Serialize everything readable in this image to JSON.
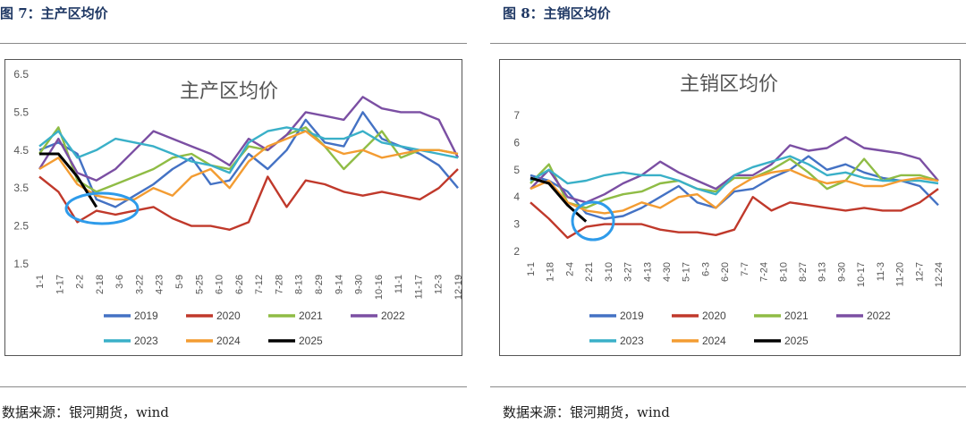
{
  "left": {
    "figure_title": "图 7：主产区均价",
    "source": "数据来源：银河期货，wind"
  },
  "right": {
    "figure_title": "图 8：主销区均价",
    "source": "数据来源：银河期货，wind"
  },
  "colors": {
    "2019": "#4472c4",
    "2020": "#c0392b",
    "2021": "#8fbc45",
    "2022": "#7b4fa3",
    "2023": "#3ab0c8",
    "2024": "#f39c32",
    "2025": "#000000",
    "highlight": "#2e9bea"
  },
  "chart_data": [
    {
      "type": "line",
      "title": "主产区均价",
      "x_ticks": [
        "1-1",
        "1-17",
        "2-2",
        "2-18",
        "3-6",
        "3-22",
        "4-23",
        "5-9",
        "5-25",
        "6-10",
        "6-26",
        "7-12",
        "7-28",
        "8-13",
        "8-29",
        "9-14",
        "9-30",
        "10-16",
        "11-1",
        "11-17",
        "12-3",
        "12-19"
      ],
      "y_ticks": [
        "6.5",
        "5.5",
        "4.5",
        "3.5",
        "2.5",
        "1.5"
      ],
      "ylim": [
        1.5,
        6.5
      ],
      "series": [
        {
          "name": "2019",
          "values": [
            4.5,
            4.7,
            4.4,
            3.2,
            3.0,
            3.3,
            3.6,
            4.0,
            4.3,
            3.6,
            3.7,
            4.4,
            4.0,
            4.5,
            5.3,
            4.7,
            4.6,
            5.5,
            4.8,
            4.6,
            4.4,
            4.1,
            3.5
          ]
        },
        {
          "name": "2020",
          "values": [
            3.8,
            3.4,
            2.6,
            2.9,
            2.8,
            2.9,
            3.0,
            2.7,
            2.5,
            2.5,
            2.4,
            2.6,
            3.8,
            3.0,
            3.7,
            3.6,
            3.4,
            3.3,
            3.4,
            3.3,
            3.2,
            3.5,
            4.0
          ]
        },
        {
          "name": "2021",
          "values": [
            4.4,
            5.1,
            3.7,
            3.4,
            3.6,
            3.8,
            4.0,
            4.3,
            4.4,
            4.1,
            4.0,
            4.6,
            4.5,
            4.9,
            5.1,
            4.6,
            4.0,
            4.5,
            5.0,
            4.3,
            4.5,
            4.5,
            4.4
          ]
        },
        {
          "name": "2022",
          "values": [
            4.0,
            4.8,
            3.9,
            3.7,
            4.0,
            4.5,
            5.0,
            4.8,
            4.6,
            4.4,
            4.1,
            4.8,
            4.5,
            4.9,
            5.5,
            5.4,
            5.3,
            5.9,
            5.6,
            5.5,
            5.5,
            5.3,
            4.3
          ]
        },
        {
          "name": "2023",
          "values": [
            4.6,
            5.0,
            4.3,
            4.5,
            4.8,
            4.7,
            4.6,
            4.4,
            4.2,
            4.1,
            3.9,
            4.7,
            5.0,
            5.1,
            5.0,
            4.8,
            4.8,
            5.0,
            4.7,
            4.6,
            4.5,
            4.4,
            4.3
          ]
        },
        {
          "name": "2024",
          "values": [
            4.0,
            4.3,
            3.6,
            3.3,
            3.2,
            3.2,
            3.5,
            3.3,
            3.8,
            4.0,
            3.5,
            4.2,
            4.6,
            4.8,
            5.0,
            4.6,
            4.4,
            4.5,
            4.3,
            4.4,
            4.5,
            4.5,
            4.4
          ]
        },
        {
          "name": "2025",
          "values": [
            4.4,
            4.4,
            3.8,
            3.0
          ]
        }
      ]
    },
    {
      "type": "line",
      "title": "主销区均价",
      "x_ticks": [
        "1-1",
        "1-18",
        "2-4",
        "2-21",
        "3-10",
        "3-27",
        "4-13",
        "4-30",
        "5-17",
        "6-3",
        "6-20",
        "7-7",
        "7-24",
        "8-10",
        "8-27",
        "9-13",
        "9-30",
        "10-17",
        "11-3",
        "11-20",
        "12-7",
        "12-24"
      ],
      "y_ticks": [
        "7",
        "6",
        "5",
        "4",
        "3",
        "2"
      ],
      "ylim": [
        2,
        7
      ],
      "series": [
        {
          "name": "2019",
          "values": [
            4.8,
            4.6,
            4.2,
            3.4,
            3.2,
            3.3,
            3.6,
            4.0,
            4.4,
            3.8,
            3.6,
            4.2,
            4.3,
            4.7,
            5.0,
            5.5,
            5.0,
            5.2,
            4.9,
            4.7,
            4.6,
            4.4,
            3.7
          ]
        },
        {
          "name": "2020",
          "values": [
            3.8,
            3.2,
            2.5,
            2.9,
            3.0,
            3.0,
            3.0,
            2.8,
            2.7,
            2.7,
            2.6,
            2.8,
            4.0,
            3.5,
            3.8,
            3.7,
            3.6,
            3.5,
            3.6,
            3.5,
            3.5,
            3.8,
            4.3
          ]
        },
        {
          "name": "2021",
          "values": [
            4.5,
            5.2,
            3.8,
            3.6,
            3.9,
            4.1,
            4.2,
            4.5,
            4.6,
            4.3,
            4.2,
            4.7,
            4.7,
            5.0,
            5.4,
            4.9,
            4.3,
            4.6,
            5.4,
            4.6,
            4.8,
            4.8,
            4.6
          ]
        },
        {
          "name": "2022",
          "values": [
            4.3,
            5.0,
            4.0,
            3.8,
            4.1,
            4.5,
            4.8,
            5.3,
            4.9,
            4.6,
            4.3,
            4.8,
            4.8,
            5.2,
            5.9,
            5.7,
            5.8,
            6.2,
            5.8,
            5.7,
            5.6,
            5.4,
            4.6
          ]
        },
        {
          "name": "2023",
          "values": [
            4.6,
            5.0,
            4.5,
            4.6,
            4.8,
            4.9,
            4.8,
            4.8,
            4.6,
            4.3,
            4.1,
            4.8,
            5.1,
            5.3,
            5.5,
            5.2,
            4.8,
            4.9,
            4.7,
            4.6,
            4.6,
            4.6,
            4.5
          ]
        },
        {
          "name": "2024",
          "values": [
            4.3,
            4.6,
            3.8,
            3.5,
            3.4,
            3.5,
            3.8,
            3.6,
            4.0,
            4.1,
            3.6,
            4.3,
            4.7,
            4.9,
            5.0,
            4.7,
            4.5,
            4.6,
            4.4,
            4.4,
            4.6,
            4.7,
            4.6
          ]
        },
        {
          "name": "2025",
          "values": [
            4.7,
            4.5,
            3.7,
            3.1
          ]
        }
      ]
    }
  ]
}
